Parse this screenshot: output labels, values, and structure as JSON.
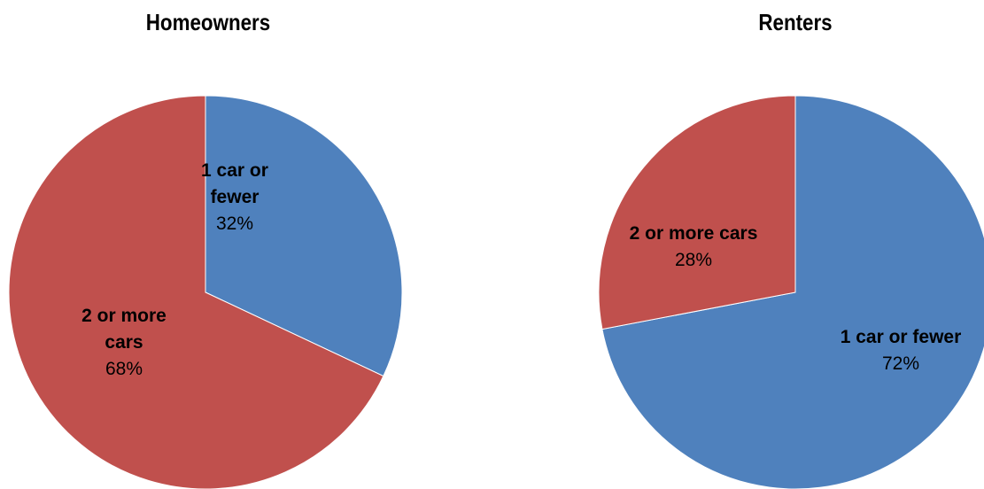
{
  "chart_data": [
    {
      "type": "pie",
      "title": "Homeowners",
      "slices": [
        {
          "label": "1 car or fewer",
          "label_lines": [
            "1 car or",
            "fewer"
          ],
          "value": 32,
          "value_label": "32%",
          "color": "#4f81bd"
        },
        {
          "label": "2 or more cars",
          "label_lines": [
            "2 or more",
            "cars"
          ],
          "value": 68,
          "value_label": "68%",
          "color": "#c0504d"
        }
      ]
    },
    {
      "type": "pie",
      "title": "Renters",
      "slices": [
        {
          "label": "1 car or fewer",
          "label_lines": [
            "1 car or fewer"
          ],
          "value": 72,
          "value_label": "72%",
          "color": "#4f81bd"
        },
        {
          "label": "2 or more cars",
          "label_lines": [
            "2 or more cars"
          ],
          "value": 28,
          "value_label": "28%",
          "color": "#c0504d"
        }
      ]
    }
  ]
}
